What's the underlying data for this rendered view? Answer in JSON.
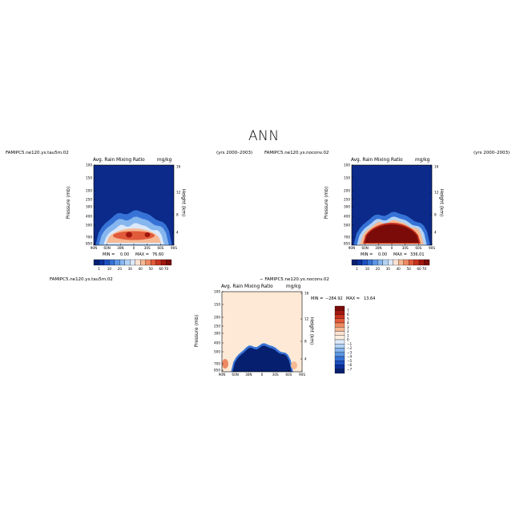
{
  "page": {
    "title": "ANN"
  },
  "chart_data": [
    {
      "id": "p1",
      "type": "heatmap",
      "case_name": "FAMIPC5.ne120.ys.tau5m.02",
      "years": "(yrs 2000–2003)",
      "title": "Avg. Rain Mixing Ratio",
      "units": "mg/kg",
      "xlabel": "",
      "ylabel": "Pressure (mb)",
      "ylabel_right": "Height (km)",
      "x_ticks": [
        "90N",
        "60N",
        "30N",
        "0",
        "30S",
        "60S",
        "90S"
      ],
      "y_ticks": [
        "100",
        "150",
        "200",
        "250",
        "300",
        "400",
        "500",
        "700",
        "850"
      ],
      "y2_ticks": [
        "16",
        "12",
        "8",
        "4"
      ],
      "min_label": "MIN =",
      "min": "0.00",
      "max_label": "MAX =",
      "max": "76.60",
      "colorbar": {
        "orientation": "horizontal",
        "levels": [
          "1",
          "10",
          "20",
          "30",
          "40",
          "50",
          "60",
          "70"
        ],
        "colors": [
          "#061f6e",
          "#0a2f9a",
          "#1c4fc2",
          "#3672d6",
          "#5c96e4",
          "#86b6ee",
          "#b4d3f5",
          "#dce9fb",
          "#fbe3d4",
          "#f6b994",
          "#ee8a63",
          "#e15a3a",
          "#c8321e",
          "#a1170f",
          "#7a0b08"
        ]
      },
      "background": "#0b2a8a",
      "max_color": "#c43a22"
    },
    {
      "id": "p2",
      "type": "heatmap",
      "case_name": "FAMIPC5.ne120.ys.noconv.02",
      "years": "(yrs 2000–2003)",
      "title": "Avg. Rain Mixing Ratio",
      "units": "mg/kg",
      "xlabel": "",
      "ylabel": "Pressure (mb)",
      "ylabel_right": "Height (km)",
      "x_ticks": [
        "90N",
        "60N",
        "30N",
        "0",
        "30S",
        "60S",
        "90S"
      ],
      "y_ticks": [
        "100",
        "150",
        "200",
        "250",
        "300",
        "400",
        "500",
        "700",
        "850"
      ],
      "y2_ticks": [
        "16",
        "12",
        "8",
        "4"
      ],
      "min_label": "MIN =",
      "min": "0.00",
      "max_label": "MAX =",
      "max": "336.01",
      "colorbar": {
        "orientation": "horizontal",
        "levels": [
          "1",
          "10",
          "20",
          "30",
          "40",
          "50",
          "60",
          "70"
        ],
        "colors": [
          "#061f6e",
          "#0a2f9a",
          "#1c4fc2",
          "#3672d6",
          "#5c96e4",
          "#86b6ee",
          "#b4d3f5",
          "#dce9fb",
          "#fbe3d4",
          "#f6b994",
          "#ee8a63",
          "#e15a3a",
          "#c8321e",
          "#a1170f",
          "#7a0b08"
        ]
      },
      "background": "#0b2a8a",
      "max_color": "#8f0d0a"
    },
    {
      "id": "p3",
      "type": "heatmap",
      "case_name": "FAMIPC5.ne120.ys.tau5m.02",
      "title": "− FAMIPC5.ne120.ys.noconv.02",
      "subtitle": "Avg. Rain Mixing Ratio",
      "units": "mg/kg",
      "xlabel": "",
      "ylabel": "Pressure (mb)",
      "ylabel_right": "Height (km)",
      "x_ticks": [
        "90N",
        "60N",
        "30N",
        "0",
        "30S",
        "60S",
        "90S"
      ],
      "y_ticks": [
        "100",
        "150",
        "200",
        "250",
        "300",
        "400",
        "500",
        "700",
        "850"
      ],
      "y2_ticks": [
        "16",
        "12",
        "8",
        "4"
      ],
      "min_label": "MIN =",
      "min": "−284.92",
      "max_label": "MAX =",
      "max": "13.64",
      "colorbar": {
        "orientation": "vertical",
        "levels": [
          "7",
          "6",
          "5",
          "4",
          "3",
          "2",
          "1",
          "0",
          "−1",
          "−2",
          "−3",
          "−4",
          "−5",
          "−6",
          "−7"
        ],
        "colors": [
          "#7a0b08",
          "#a1170f",
          "#c8321e",
          "#e15a3a",
          "#ee8a63",
          "#f6b994",
          "#fbe3d4",
          "#fdeee2",
          "#dce9fb",
          "#b4d3f5",
          "#86b6ee",
          "#5c96e4",
          "#3672d6",
          "#1c4fc2",
          "#0a2f9a",
          "#061f6e"
        ]
      },
      "background": "#fde9d6"
    }
  ]
}
